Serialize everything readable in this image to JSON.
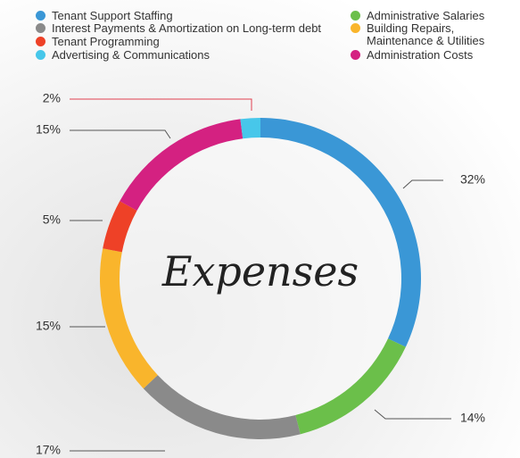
{
  "chart_data": {
    "type": "donut",
    "center_label": "Expenses",
    "categories": [
      "Tenant Support Staffing",
      "Administrative Salaries",
      "Interest Payments & Amortization on Long-term debt",
      "Building Repairs,\nMaintenance & Utilities",
      "Tenant Programming",
      "Administration Costs",
      "Advertising & Communications"
    ],
    "values": [
      32,
      14,
      17,
      15,
      5,
      15,
      2
    ],
    "value_labels": [
      "32%",
      "14%",
      "17%",
      "15%",
      "5%",
      "15%",
      "2%"
    ],
    "colors": [
      "#3a97d6",
      "#6bbf4a",
      "#8a8a8a",
      "#f9b52c",
      "#ee4127",
      "#d42181",
      "#47c7ea"
    ]
  }
}
